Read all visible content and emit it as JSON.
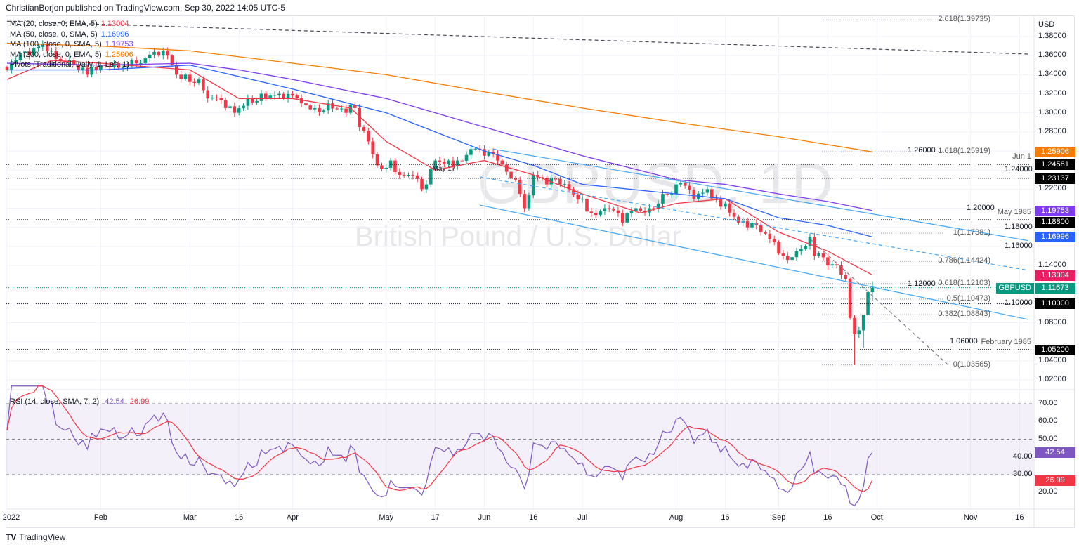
{
  "header": {
    "published": "ChristianBorjon published on TradingView.com, Sep 30, 2022 14:05 UTC-5",
    "logo": "TradingView"
  },
  "watermark": {
    "symbol": "GBPUSD, 1D",
    "name": "British Pound / U.S. Dollar"
  },
  "legend": [
    {
      "label": "MA (20, close, 0, EMA, 5)",
      "value": "1.13004",
      "color": "#f23645"
    },
    {
      "label": "MA (50, close, 0, SMA, 5)",
      "value": "1.16996",
      "color": "#2962ff"
    },
    {
      "label": "MA (100, close, 0, SMA, 5)",
      "value": "1.19753",
      "color": "#7e3cf0"
    },
    {
      "label": "MA (200, close, 0, EMA, 5)",
      "value": "1.25906",
      "color": "#f57c00"
    },
    {
      "label": "Pivots (Traditional, Daily, 1, Left, 1)",
      "value": "",
      "color": "#131722"
    }
  ],
  "rsi_legend": {
    "label": "RSI (14, close, SMA, 7, 2)",
    "rsi": "42.54",
    "sma": "26.99"
  },
  "chart_data": {
    "type": "candlestick",
    "symbol": "GBPUSD",
    "interval": "1D",
    "currency": "USD",
    "ylim": [
      1.01,
      1.405
    ],
    "y_ticks": [
      "1.38000",
      "1.36000",
      "1.34000",
      "1.32000",
      "1.30000",
      "1.28000",
      "1.26000",
      "1.24000",
      "1.22000",
      "1.20000",
      "1.18000",
      "1.16000",
      "1.14000",
      "1.12000",
      "1.10000",
      "1.08000",
      "1.06000",
      "1.04000",
      "1.02000"
    ],
    "x_ticks": [
      {
        "date": "2022-01-03",
        "label": "2022"
      },
      {
        "date": "2022-02-01",
        "label": "Feb"
      },
      {
        "date": "2022-03-01",
        "label": "Mar"
      },
      {
        "date": "2022-03-16",
        "label": "16"
      },
      {
        "date": "2022-04-01",
        "label": "Apr"
      },
      {
        "date": "2022-05-02",
        "label": "May"
      },
      {
        "date": "2022-05-17",
        "label": "17"
      },
      {
        "date": "2022-06-01",
        "label": "Jun"
      },
      {
        "date": "2022-06-16",
        "label": "16"
      },
      {
        "date": "2022-07-01",
        "label": "Jul"
      },
      {
        "date": "2022-08-01",
        "label": "Aug"
      },
      {
        "date": "2022-08-16",
        "label": "16"
      },
      {
        "date": "2022-09-01",
        "label": "Sep"
      },
      {
        "date": "2022-09-16",
        "label": "16"
      },
      {
        "date": "2022-10-03",
        "label": "Oct"
      },
      {
        "date": "2022-11-01",
        "label": "Nov"
      },
      {
        "date": "2022-11-16",
        "label": "16"
      }
    ],
    "approx_closes": [
      [
        "2022-01-03",
        1.345
      ],
      [
        "2022-01-05",
        1.355
      ],
      [
        "2022-01-10",
        1.36
      ],
      [
        "2022-01-13",
        1.372
      ],
      [
        "2022-01-17",
        1.365
      ],
      [
        "2022-01-21",
        1.355
      ],
      [
        "2022-01-25",
        1.345
      ],
      [
        "2022-01-27",
        1.34
      ],
      [
        "2022-01-31",
        1.345
      ],
      [
        "2022-02-04",
        1.352
      ],
      [
        "2022-02-10",
        1.355
      ],
      [
        "2022-02-14",
        1.352
      ],
      [
        "2022-02-18",
        1.36
      ],
      [
        "2022-02-22",
        1.36
      ],
      [
        "2022-02-24",
        1.34
      ],
      [
        "2022-02-28",
        1.34
      ],
      [
        "2022-03-03",
        1.335
      ],
      [
        "2022-03-07",
        1.315
      ],
      [
        "2022-03-11",
        1.305
      ],
      [
        "2022-03-15",
        1.3
      ],
      [
        "2022-03-18",
        1.315
      ],
      [
        "2022-03-23",
        1.32
      ],
      [
        "2022-03-25",
        1.318
      ],
      [
        "2022-03-30",
        1.315
      ],
      [
        "2022-04-05",
        1.31
      ],
      [
        "2022-04-08",
        1.305
      ],
      [
        "2022-04-13",
        1.31
      ],
      [
        "2022-04-19",
        1.3
      ],
      [
        "2022-04-21",
        1.305
      ],
      [
        "2022-04-22",
        1.285
      ],
      [
        "2022-04-26",
        1.27
      ],
      [
        "2022-04-28",
        1.245
      ],
      [
        "2022-05-03",
        1.25
      ],
      [
        "2022-05-05",
        1.235
      ],
      [
        "2022-05-09",
        1.235
      ],
      [
        "2022-05-12",
        1.22
      ],
      [
        "2022-05-13",
        1.225
      ],
      [
        "2022-05-17",
        1.25
      ],
      [
        "2022-05-20",
        1.25
      ],
      [
        "2022-05-24",
        1.25
      ],
      [
        "2022-05-27",
        1.262
      ],
      [
        "2022-06-01",
        1.255
      ],
      [
        "2022-06-06",
        1.25
      ],
      [
        "2022-06-10",
        1.23
      ],
      [
        "2022-06-13",
        1.215
      ],
      [
        "2022-06-14",
        1.2
      ],
      [
        "2022-06-16",
        1.235
      ],
      [
        "2022-06-21",
        1.225
      ],
      [
        "2022-06-24",
        1.225
      ],
      [
        "2022-06-28",
        1.22
      ],
      [
        "2022-07-01",
        1.21
      ],
      [
        "2022-07-05",
        1.195
      ],
      [
        "2022-07-08",
        1.2
      ],
      [
        "2022-07-14",
        1.185
      ],
      [
        "2022-07-19",
        1.2
      ],
      [
        "2022-07-22",
        1.2
      ],
      [
        "2022-07-27",
        1.215
      ],
      [
        "2022-07-29",
        1.215
      ],
      [
        "2022-08-01",
        1.225
      ],
      [
        "2022-08-05",
        1.21
      ],
      [
        "2022-08-10",
        1.22
      ],
      [
        "2022-08-12",
        1.21
      ],
      [
        "2022-08-16",
        1.205
      ],
      [
        "2022-08-19",
        1.185
      ],
      [
        "2022-08-23",
        1.18
      ],
      [
        "2022-08-26",
        1.175
      ],
      [
        "2022-08-31",
        1.165
      ],
      [
        "2022-09-02",
        1.15
      ],
      [
        "2022-09-07",
        1.155
      ],
      [
        "2022-09-09",
        1.16
      ],
      [
        "2022-09-12",
        1.17
      ],
      [
        "2022-09-13",
        1.15
      ],
      [
        "2022-09-16",
        1.14
      ],
      [
        "2022-09-20",
        1.14
      ],
      [
        "2022-09-21",
        1.13
      ],
      [
        "2022-09-22",
        1.126
      ]
    ],
    "recent_candles": [
      [
        "2022-09-23",
        1.126,
        1.127,
        1.083,
        1.085
      ],
      [
        "2022-09-26",
        1.085,
        1.088,
        1.0356,
        1.068
      ],
      [
        "2022-09-27",
        1.068,
        1.076,
        1.064,
        1.072
      ],
      [
        "2022-09-28",
        1.072,
        1.088,
        1.0538,
        1.088
      ],
      [
        "2022-09-29",
        1.088,
        1.113,
        1.078,
        1.112
      ],
      [
        "2022-09-30",
        1.112,
        1.1235,
        1.1025,
        1.1167
      ]
    ],
    "moving_averages": [
      {
        "name": "MA 20 EMA",
        "color": "#f23645",
        "points": [
          [
            "2022-01-03",
            1.335
          ],
          [
            "2022-01-17",
            1.355
          ],
          [
            "2022-02-01",
            1.352
          ],
          [
            "2022-03-01",
            1.345
          ],
          [
            "2022-03-16",
            1.315
          ],
          [
            "2022-04-01",
            1.315
          ],
          [
            "2022-04-20",
            1.305
          ],
          [
            "2022-05-02",
            1.27
          ],
          [
            "2022-05-17",
            1.24
          ],
          [
            "2022-06-01",
            1.25
          ],
          [
            "2022-06-16",
            1.235
          ],
          [
            "2022-07-01",
            1.215
          ],
          [
            "2022-07-20",
            1.195
          ],
          [
            "2022-08-01",
            1.205
          ],
          [
            "2022-08-16",
            1.21
          ],
          [
            "2022-09-01",
            1.175
          ],
          [
            "2022-09-16",
            1.155
          ],
          [
            "2022-09-30",
            1.13004
          ]
        ]
      },
      {
        "name": "MA 50 SMA",
        "color": "#2962ff",
        "points": [
          [
            "2022-01-03",
            1.345
          ],
          [
            "2022-02-01",
            1.345
          ],
          [
            "2022-03-01",
            1.35
          ],
          [
            "2022-04-01",
            1.325
          ],
          [
            "2022-05-02",
            1.3
          ],
          [
            "2022-05-17",
            1.28
          ],
          [
            "2022-06-01",
            1.26
          ],
          [
            "2022-06-16",
            1.245
          ],
          [
            "2022-07-01",
            1.225
          ],
          [
            "2022-08-01",
            1.215
          ],
          [
            "2022-08-16",
            1.21
          ],
          [
            "2022-09-01",
            1.19
          ],
          [
            "2022-09-16",
            1.182
          ],
          [
            "2022-09-30",
            1.16996
          ]
        ]
      },
      {
        "name": "MA 100 SMA",
        "color": "#7e3cf0",
        "points": [
          [
            "2022-01-03",
            1.352
          ],
          [
            "2022-02-01",
            1.35
          ],
          [
            "2022-03-01",
            1.352
          ],
          [
            "2022-03-16",
            1.345
          ],
          [
            "2022-04-01",
            1.335
          ],
          [
            "2022-05-02",
            1.315
          ],
          [
            "2022-06-01",
            1.285
          ],
          [
            "2022-07-01",
            1.255
          ],
          [
            "2022-08-01",
            1.23
          ],
          [
            "2022-08-16",
            1.225
          ],
          [
            "2022-09-01",
            1.215
          ],
          [
            "2022-09-16",
            1.207
          ],
          [
            "2022-09-30",
            1.19753
          ]
        ]
      },
      {
        "name": "MA 200 EMA",
        "color": "#f57c00",
        "points": [
          [
            "2022-01-03",
            1.373
          ],
          [
            "2022-02-01",
            1.37
          ],
          [
            "2022-03-01",
            1.365
          ],
          [
            "2022-04-01",
            1.352
          ],
          [
            "2022-05-02",
            1.34
          ],
          [
            "2022-06-01",
            1.322
          ],
          [
            "2022-07-01",
            1.305
          ],
          [
            "2022-08-01",
            1.29
          ],
          [
            "2022-09-01",
            1.275
          ],
          [
            "2022-09-30",
            1.25906
          ]
        ]
      }
    ],
    "horizontal_levels": [
      {
        "price": 1.24581,
        "label": "Jun 1",
        "badge": "1.24581"
      },
      {
        "price": 1.23137,
        "label": "",
        "badge": "1.23137"
      },
      {
        "price": 1.188,
        "label": "May 1985",
        "badge": "1.18800"
      },
      {
        "price": 1.1,
        "label": "",
        "badge": "1.10000"
      },
      {
        "price": 1.052,
        "label": "February 1985",
        "badge": "1.05200"
      }
    ],
    "fib_levels": [
      {
        "label": "2.618(1.39735)",
        "price": 1.39735
      },
      {
        "label": "1.618(1.25919)",
        "price": 1.25919
      },
      {
        "label": "1(1.17381)",
        "price": 1.17381
      },
      {
        "label": "0.786(1.14424)",
        "price": 1.14424
      },
      {
        "label": "0.618(1.12103)",
        "price": 1.12103
      },
      {
        "label": "0.5(1.10473)",
        "price": 1.10473
      },
      {
        "label": "0.382(1.08843)",
        "price": 1.08843
      },
      {
        "label": "0(1.03565)",
        "price": 1.03565
      }
    ],
    "price_badges": [
      {
        "text": "1.25906",
        "price": 1.25906,
        "color": "#f57c00"
      },
      {
        "text": "1.19753",
        "price": 1.19753,
        "color": "#7e3cf0"
      },
      {
        "text": "1.16996",
        "price": 1.16996,
        "color": "#2962ff"
      },
      {
        "text": "1.13004",
        "price": 1.13004,
        "color": "#e91e63"
      },
      {
        "text": "1.11673",
        "price": 1.11673,
        "color": "#089981",
        "symbol": "GBPUSD"
      }
    ],
    "trendlines": [
      {
        "style": "solid",
        "color": "#42a5f5",
        "from": [
          "2022-06-03",
          1.262
        ],
        "to": [
          "2022-11-18",
          1.166
        ]
      },
      {
        "style": "solid",
        "color": "#42a5f5",
        "from": [
          "2022-05-31",
          1.2033
        ],
        "to": [
          "2022-11-18",
          1.0833
        ]
      },
      {
        "style": "dashed",
        "color": "#42a5f5",
        "from": [
          "2022-05-31",
          1.2328
        ],
        "to": [
          "2022-11-18",
          1.1349
        ]
      },
      {
        "style": "dashed",
        "color": "#434651",
        "from": [
          "2022-01-03",
          1.396
        ],
        "to": [
          "2022-11-18",
          1.3616
        ]
      },
      {
        "style": "dashed",
        "color": "#787b86",
        "from": [
          "2022-09-12",
          1.168
        ],
        "to": [
          "2022-10-25",
          1.0356
        ]
      }
    ],
    "annotations": [
      {
        "text": "May 17",
        "date": "2022-05-17",
        "price": 1.2405
      }
    ],
    "rsi": {
      "ylim": [
        10,
        75
      ],
      "ticks": [
        "70.00",
        "60.00",
        "50.00",
        "40.00",
        "30.00",
        "20.00"
      ],
      "band": [
        30,
        70
      ],
      "rsi_color": "#7e57c2",
      "sma_color": "#f23645",
      "last_rsi": 42.54,
      "last_sma": 26.99
    }
  }
}
